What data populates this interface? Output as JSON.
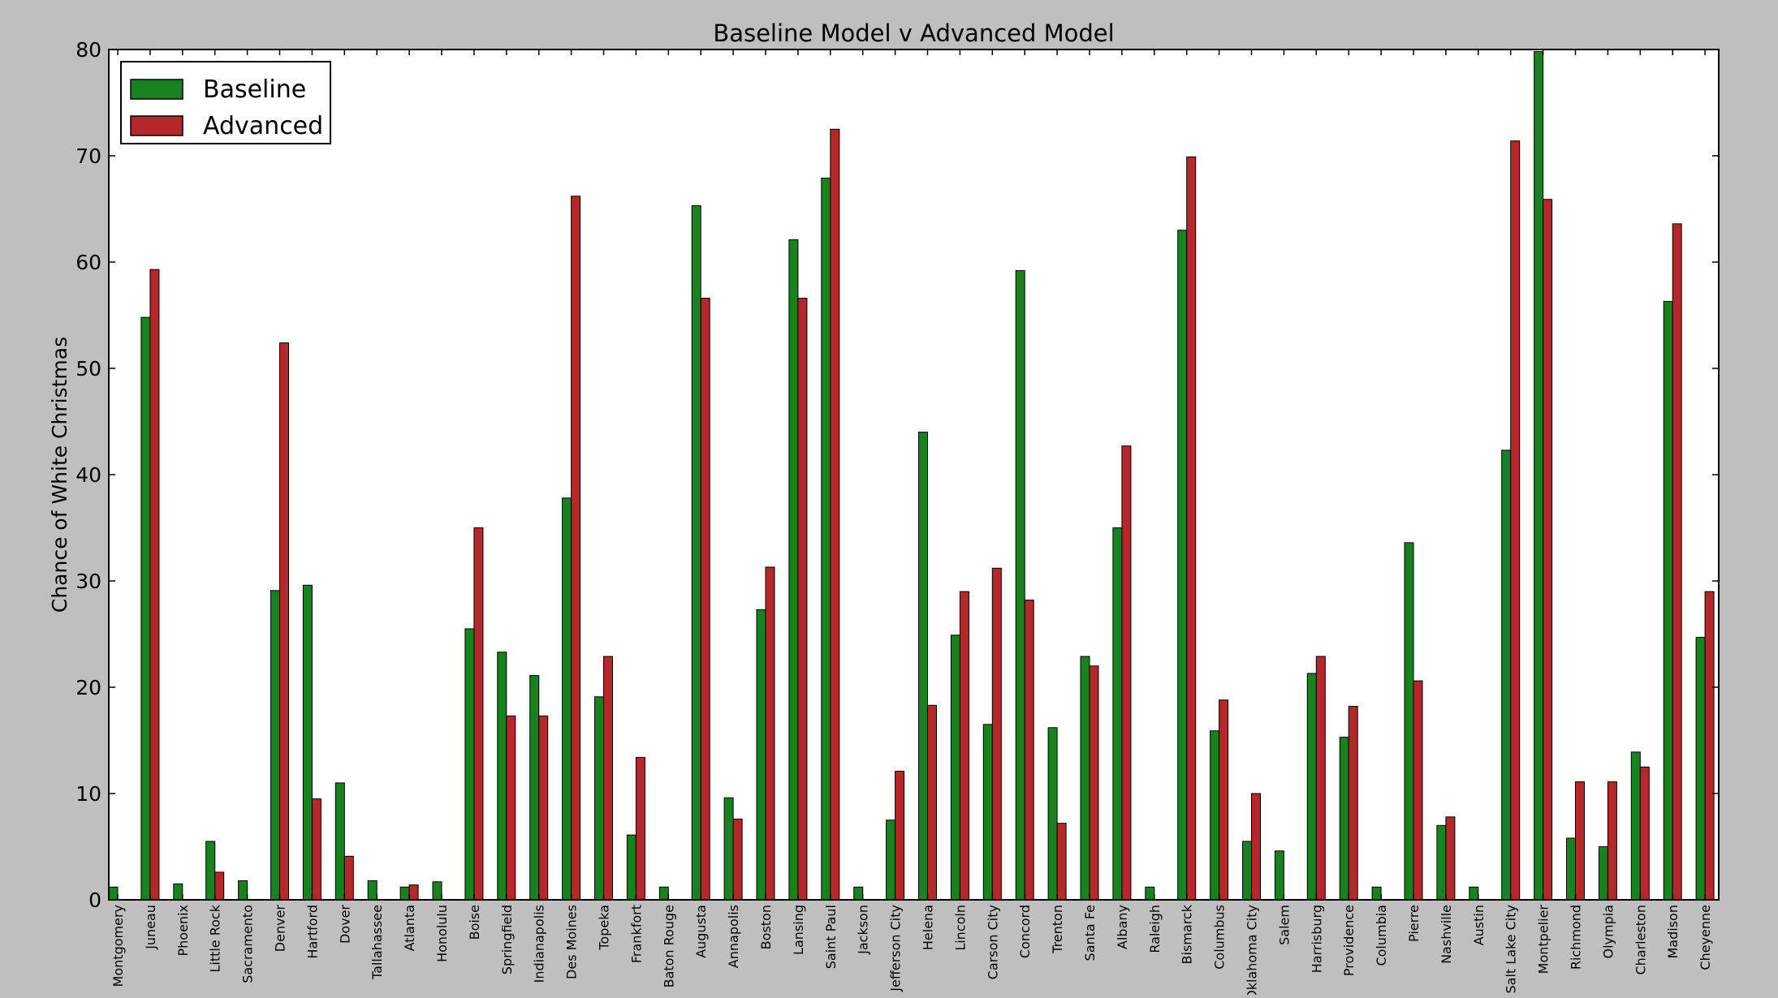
{
  "chart_data": {
    "type": "bar",
    "title": "Baseline Model v Advanced Model",
    "xlabel": "",
    "ylabel": "Chance of White Christmas",
    "ylim": [
      0,
      80
    ],
    "yticks": [
      0,
      10,
      20,
      30,
      40,
      50,
      60,
      70,
      80
    ],
    "grid": false,
    "legend_position": "top-left",
    "categories": [
      "Montgomery",
      "Juneau",
      "Phoenix",
      "Little Rock",
      "Sacramento",
      "Denver",
      "Hartford",
      "Dover",
      "Tallahassee",
      "Atlanta",
      "Honolulu",
      "Boise",
      "Springfield",
      "Indianapolis",
      "Des Moines",
      "Topeka",
      "Frankfort",
      "Baton Rouge",
      "Augusta",
      "Annapolis",
      "Boston",
      "Lansing",
      "Saint Paul",
      "Jackson",
      "Jefferson City",
      "Helena",
      "Lincoln",
      "Carson City",
      "Concord",
      "Trenton",
      "Santa Fe",
      "Albany",
      "Raleigh",
      "Bismarck",
      "Columbus",
      "Oklahoma City",
      "Salem",
      "Harrisburg",
      "Providence",
      "Columbia",
      "Pierre",
      "Nashville",
      "Austin",
      "Salt Lake City",
      "Montpelier",
      "Richmond",
      "Olympia",
      "Charleston",
      "Madison",
      "Cheyenne"
    ],
    "series": [
      {
        "name": "Baseline",
        "color": "#18821e",
        "values": [
          1.2,
          54.8,
          1.5,
          5.5,
          1.8,
          29.1,
          29.6,
          11.0,
          1.8,
          1.2,
          1.7,
          25.5,
          23.3,
          21.1,
          37.8,
          19.1,
          6.1,
          1.2,
          65.3,
          9.6,
          27.3,
          62.1,
          67.9,
          1.2,
          7.5,
          44.0,
          24.9,
          16.5,
          59.2,
          16.2,
          22.9,
          35.0,
          1.2,
          63.0,
          15.9,
          5.5,
          4.6,
          21.3,
          15.3,
          1.2,
          33.6,
          7.0,
          1.2,
          42.3,
          79.8,
          5.8,
          5.0,
          13.9,
          56.3,
          24.7
        ]
      },
      {
        "name": "Advanced",
        "color": "#b5272a",
        "values": [
          0,
          59.3,
          0,
          2.6,
          0,
          52.4,
          9.5,
          4.1,
          0,
          1.4,
          0,
          35.0,
          17.3,
          17.3,
          66.2,
          22.9,
          13.4,
          0,
          56.6,
          7.6,
          31.3,
          56.6,
          72.5,
          0,
          12.1,
          18.3,
          29.0,
          31.2,
          28.2,
          7.2,
          22.0,
          42.7,
          0,
          69.9,
          18.8,
          10.0,
          0,
          22.9,
          18.2,
          0,
          20.6,
          7.8,
          0,
          71.4,
          65.9,
          11.1,
          11.1,
          12.5,
          63.6,
          29.0
        ]
      }
    ]
  }
}
